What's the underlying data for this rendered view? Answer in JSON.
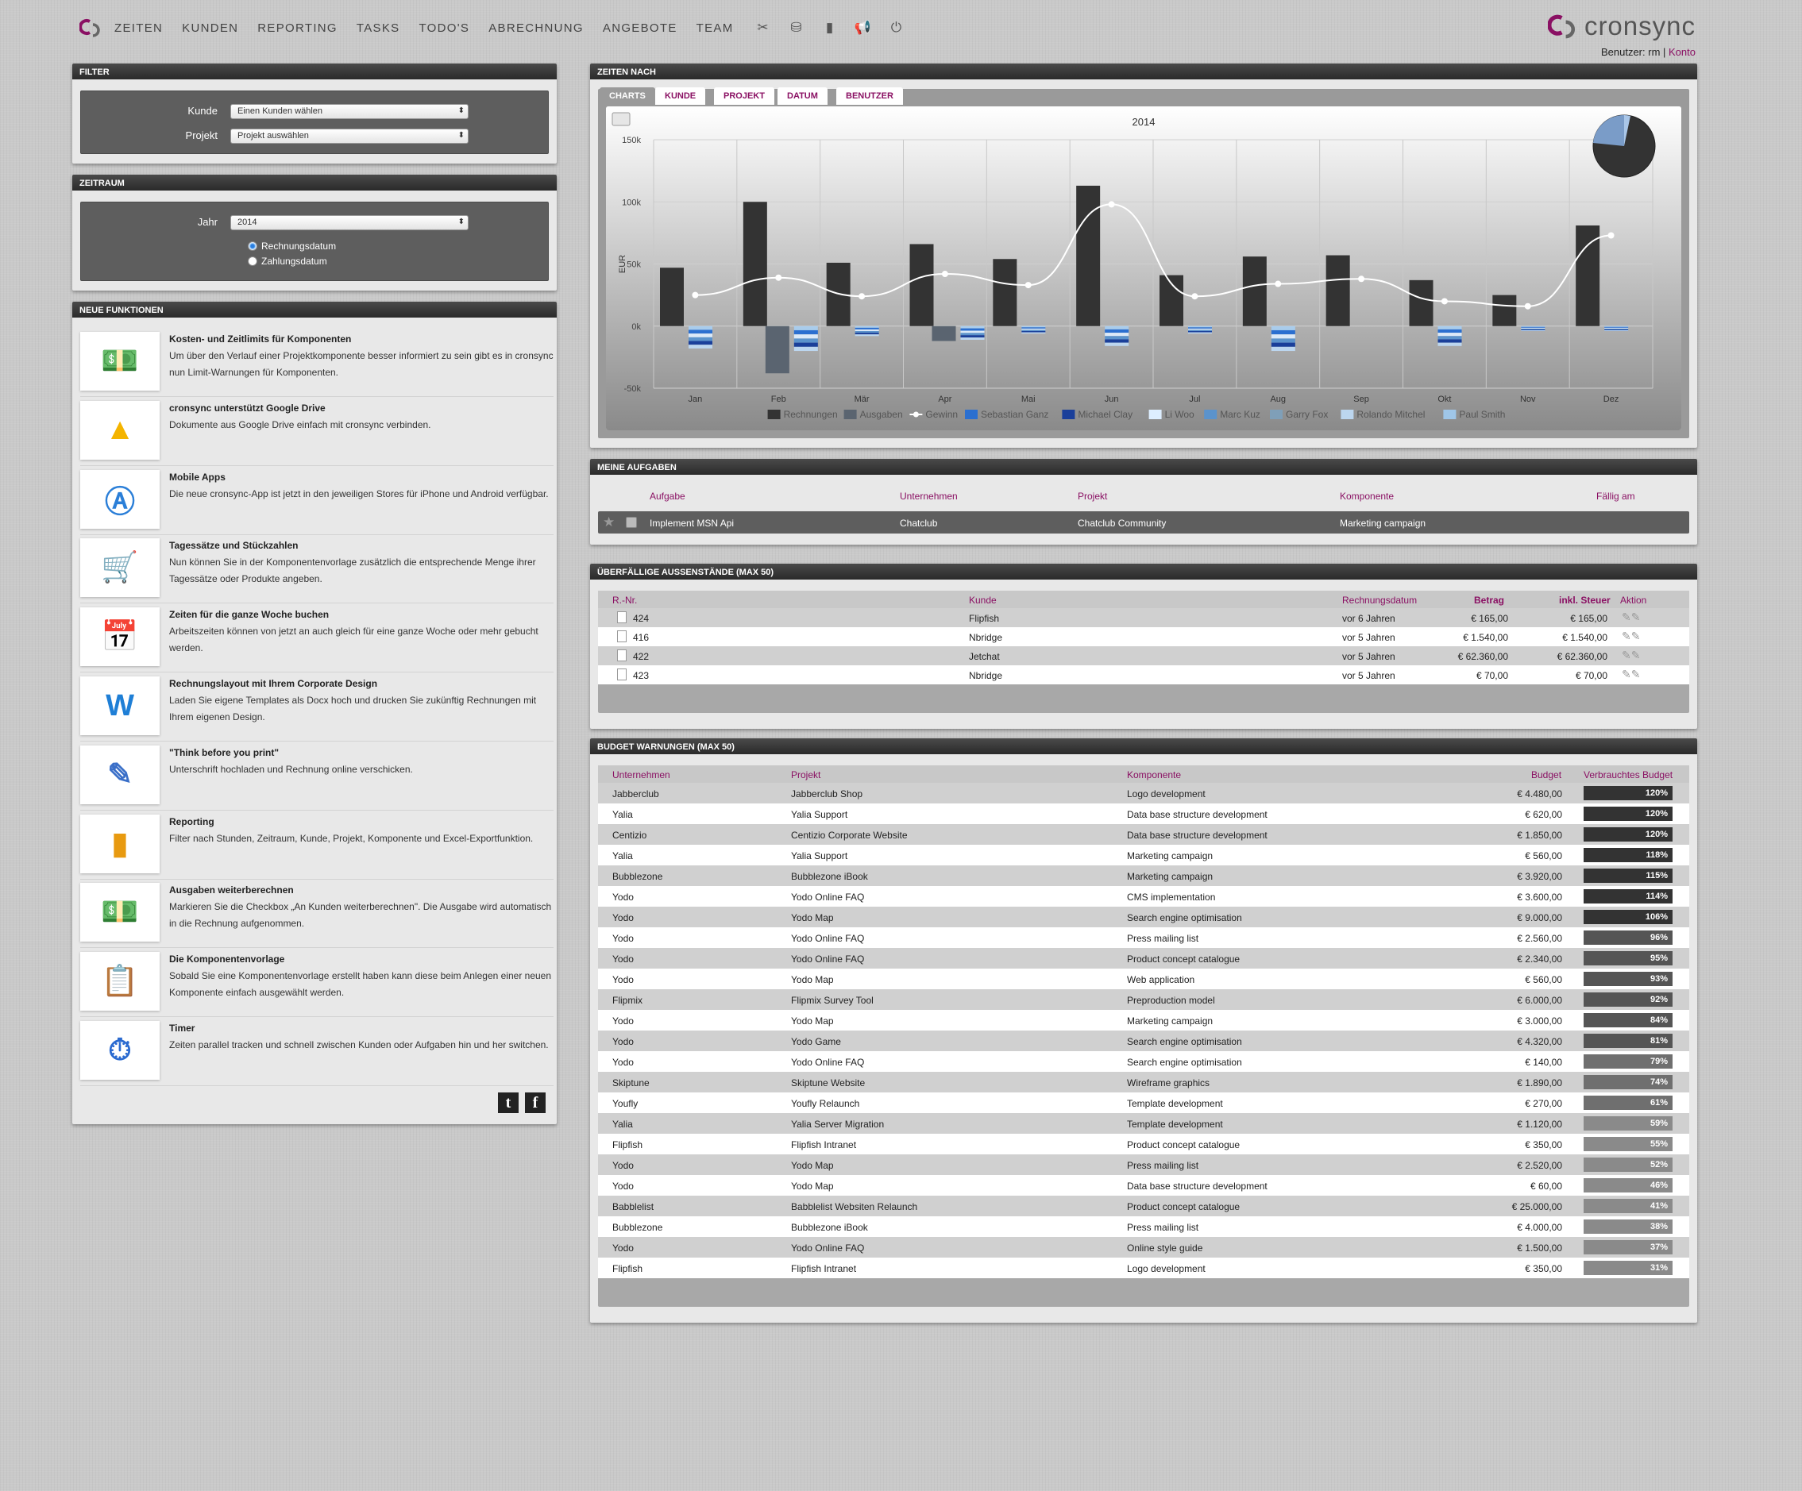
{
  "nav": {
    "items": [
      "ZEITEN",
      "KUNDEN",
      "REPORTING",
      "TASKS",
      "TODO'S",
      "ABRECHNUNG",
      "ANGEBOTE",
      "TEAM"
    ]
  },
  "brand": {
    "name": "cronsync",
    "user_label": "Benutzer: rm |",
    "konto": "Konto"
  },
  "filter": {
    "title": "FILTER",
    "kunde_label": "Kunde",
    "kunde_value": "Einen Kunden wählen",
    "projekt_label": "Projekt",
    "projekt_value": "Projekt auswählen"
  },
  "zeitraum": {
    "title": "ZEITRAUM",
    "jahr_label": "Jahr",
    "jahr_value": "2014",
    "radio1": "Rechnungsdatum",
    "radio2": "Zahlungsdatum"
  },
  "neue": {
    "title": "NEUE FUNKTIONEN",
    "items": [
      {
        "title": "Kosten- und Zeitlimits für Komponenten",
        "desc": "Um über den Verlauf einer Projektkomponente besser informiert zu sein gibt es in cronsync nun Limit-Warnungen für Komponenten.",
        "icon": "money-clock-icon"
      },
      {
        "title": "cronsync unterstützt Google Drive",
        "desc": "Dokumente aus Google Drive einfach mit cronsync verbinden.",
        "icon": "google-drive-icon"
      },
      {
        "title": "Mobile Apps",
        "desc": "Die neue cronsync-App ist jetzt in den jeweiligen Stores für iPhone und Android verfügbar.",
        "icon": "app-store-icon"
      },
      {
        "title": "Tagessätze und Stückzahlen",
        "desc": "Nun können Sie in der Komponentenvorlage zusätzlich die entsprechende Menge ihrer Tagessätze oder Produkte angeben.",
        "icon": "shopping-cart-icon"
      },
      {
        "title": "Zeiten für die ganze Woche buchen",
        "desc": "Arbeitszeiten können von jetzt an auch gleich für eine ganze Woche oder mehr gebucht werden.",
        "icon": "calendar-icon"
      },
      {
        "title": "Rechnungslayout mit Ihrem Corporate Design",
        "desc": "Laden Sie eigene Templates als Docx hoch und drucken Sie zukünftig Rechnungen mit Ihrem eigenen Design.",
        "icon": "word-icon"
      },
      {
        "title": "\"Think before you print\"",
        "desc": "Unterschrift hochladen und Rechnung online verschicken.",
        "icon": "document-pen-icon"
      },
      {
        "title": "Reporting",
        "desc": "Filter nach Stunden, Zeitraum, Kunde, Projekt, Komponente und Excel-Exportfunktion.",
        "icon": "bar-chart-icon"
      },
      {
        "title": "Ausgaben weiterberechnen",
        "desc": "Markieren Sie die Checkbox „An Kunden weiterberechnen\". Die Ausgabe wird automatisch in die Rechnung aufgenommen.",
        "icon": "money-icon"
      },
      {
        "title": "Die Komponentenvorlage",
        "desc": "Sobald Sie eine Komponentenvorlage erstellt haben kann diese beim Anlegen einer neuen Komponente einfach ausgewählt werden.",
        "icon": "clipboard-icon"
      },
      {
        "title": "Timer",
        "desc": "Zeiten parallel tracken und schnell zwischen Kunden oder Aufgaben hin und her switchen.",
        "icon": "timer-icon"
      }
    ]
  },
  "zeiten": {
    "title": "ZEITEN NACH",
    "tabs": [
      "CHARTS",
      "KUNDE",
      "PROJEKT",
      "DATUM",
      "BENUTZER"
    ]
  },
  "chart_data": {
    "type": "bar",
    "title": "2014",
    "ylabel": "EUR",
    "ylim": [
      -50000,
      150000
    ],
    "yticks": [
      "150k",
      "100k",
      "50k",
      "0k",
      "-50k"
    ],
    "categories": [
      "Jan",
      "Feb",
      "Mär",
      "Apr",
      "Mai",
      "Jun",
      "Jul",
      "Aug",
      "Sep",
      "Okt",
      "Nov",
      "Dez"
    ],
    "series": [
      {
        "name": "Rechnungen",
        "color": "#333333",
        "values": [
          47000,
          100000,
          51000,
          66000,
          54000,
          113000,
          41000,
          56000,
          57000,
          37000,
          25000,
          81000
        ]
      },
      {
        "name": "Ausgaben",
        "color": "#5a6470",
        "values": [
          0,
          -38000,
          0,
          -12000,
          0,
          0,
          0,
          0,
          0,
          0,
          0,
          0
        ]
      },
      {
        "name": "Gewinn",
        "color": "#ffffff",
        "type": "line",
        "values": [
          25000,
          39000,
          24000,
          42000,
          33000,
          98000,
          24000,
          34000,
          38000,
          20000,
          16000,
          73000
        ]
      },
      {
        "name": "Sebastian Ganz",
        "color": "#2b6fd0",
        "values": [
          -18000,
          -20000,
          -8000,
          -11000,
          -6000,
          -16000,
          -6000,
          -20000,
          0,
          -16000,
          -4000,
          -4000
        ]
      },
      {
        "name": "Michael Clay",
        "color": "#1a3f9a",
        "values": [
          0,
          0,
          0,
          0,
          0,
          0,
          0,
          0,
          0,
          0,
          0,
          0
        ]
      },
      {
        "name": "Li Woo",
        "color": "#ddeeff",
        "values": [
          0,
          0,
          0,
          0,
          0,
          0,
          0,
          0,
          0,
          0,
          0,
          0
        ]
      },
      {
        "name": "Marc Kuz",
        "color": "#5b93cc",
        "values": [
          0,
          0,
          0,
          0,
          0,
          0,
          0,
          0,
          0,
          0,
          0,
          0
        ]
      },
      {
        "name": "Garry Fox",
        "color": "#7f9fb8",
        "values": [
          0,
          0,
          0,
          0,
          0,
          0,
          0,
          0,
          0,
          0,
          0,
          0
        ]
      },
      {
        "name": "Rolando Mitchel",
        "color": "#bcd6ef",
        "values": [
          0,
          0,
          0,
          0,
          0,
          0,
          0,
          0,
          0,
          0,
          0,
          0
        ]
      },
      {
        "name": "Paul Smith",
        "color": "#9fc6e8",
        "values": [
          0,
          0,
          0,
          0,
          0,
          0,
          0,
          0,
          0,
          0,
          0,
          0
        ]
      }
    ]
  },
  "aufgaben": {
    "title": "MEINE AUFGABEN",
    "headers": [
      "Aufgabe",
      "Unternehmen",
      "Projekt",
      "Komponente",
      "Fällig am"
    ],
    "row": [
      "Implement MSN Api",
      "Chatclub",
      "Chatclub Community",
      "Marketing campaign",
      ""
    ]
  },
  "ueberfaellig": {
    "title": "ÜBERFÄLLIGE AUSSENSTÄNDE (MAX 50)",
    "headers": [
      "R.-Nr.",
      "Kunde",
      "Rechnungsdatum",
      "Betrag",
      "inkl. Steuer",
      "Aktion"
    ],
    "rows": [
      [
        "424",
        "Flipfish",
        "vor 6 Jahren",
        "€ 165,00",
        "€ 165,00"
      ],
      [
        "416",
        "Nbridge",
        "vor 5 Jahren",
        "€ 1.540,00",
        "€ 1.540,00"
      ],
      [
        "422",
        "Jetchat",
        "vor 5 Jahren",
        "€ 62.360,00",
        "€ 62.360,00"
      ],
      [
        "423",
        "Nbridge",
        "vor 5 Jahren",
        "€ 70,00",
        "€ 70,00"
      ]
    ]
  },
  "budget": {
    "title": "BUDGET WARNUNGEN (MAX 50)",
    "headers": [
      "Unternehmen",
      "Projekt",
      "Komponente",
      "Budget",
      "Verbrauchtes Budget"
    ],
    "rows": [
      [
        "Jabberclub",
        "Jabberclub Shop",
        "Logo development",
        "€ 4.480,00",
        "120%"
      ],
      [
        "Yalia",
        "Yalia Support",
        "Data base structure development",
        "€ 620,00",
        "120%"
      ],
      [
        "Centizio",
        "Centizio Corporate Website",
        "Data base structure development",
        "€ 1.850,00",
        "120%"
      ],
      [
        "Yalia",
        "Yalia Support",
        "Marketing campaign",
        "€ 560,00",
        "118%"
      ],
      [
        "Bubblezone",
        "Bubblezone iBook",
        "Marketing campaign",
        "€ 3.920,00",
        "115%"
      ],
      [
        "Yodo",
        "Yodo Online FAQ",
        "CMS implementation",
        "€ 3.600,00",
        "114%"
      ],
      [
        "Yodo",
        "Yodo Map",
        "Search engine optimisation",
        "€ 9.000,00",
        "106%"
      ],
      [
        "Yodo",
        "Yodo Online FAQ",
        "Press mailing list",
        "€ 2.560,00",
        "96%"
      ],
      [
        "Yodo",
        "Yodo Online FAQ",
        "Product concept catalogue",
        "€ 2.340,00",
        "95%"
      ],
      [
        "Yodo",
        "Yodo Map",
        "Web application",
        "€ 560,00",
        "93%"
      ],
      [
        "Flipmix",
        "Flipmix Survey Tool",
        "Preproduction model",
        "€ 6.000,00",
        "92%"
      ],
      [
        "Yodo",
        "Yodo Map",
        "Marketing campaign",
        "€ 3.000,00",
        "84%"
      ],
      [
        "Yodo",
        "Yodo Game",
        "Search engine optimisation",
        "€ 4.320,00",
        "81%"
      ],
      [
        "Yodo",
        "Yodo Online FAQ",
        "Search engine optimisation",
        "€ 140,00",
        "79%"
      ],
      [
        "Skiptune",
        "Skiptune Website",
        "Wireframe graphics",
        "€ 1.890,00",
        "74%"
      ],
      [
        "Youfly",
        "Youfly Relaunch",
        "Template development",
        "€ 270,00",
        "61%"
      ],
      [
        "Yalia",
        "Yalia Server Migration",
        "Template development",
        "€ 1.120,00",
        "59%"
      ],
      [
        "Flipfish",
        "Flipfish Intranet",
        "Product concept catalogue",
        "€ 350,00",
        "55%"
      ],
      [
        "Yodo",
        "Yodo Map",
        "Press mailing list",
        "€ 2.520,00",
        "52%"
      ],
      [
        "Yodo",
        "Yodo Map",
        "Data base structure development",
        "€ 60,00",
        "46%"
      ],
      [
        "Babblelist",
        "Babblelist Websiten Relaunch",
        "Product concept catalogue",
        "€ 25.000,00",
        "41%"
      ],
      [
        "Bubblezone",
        "Bubblezone iBook",
        "Press mailing list",
        "€ 4.000,00",
        "38%"
      ],
      [
        "Yodo",
        "Yodo Online FAQ",
        "Online style guide",
        "€ 1.500,00",
        "37%"
      ],
      [
        "Flipfish",
        "Flipfish Intranet",
        "Logo development",
        "€ 350,00",
        "31%"
      ]
    ]
  },
  "social": {
    "twitter": "t",
    "facebook": "f"
  }
}
